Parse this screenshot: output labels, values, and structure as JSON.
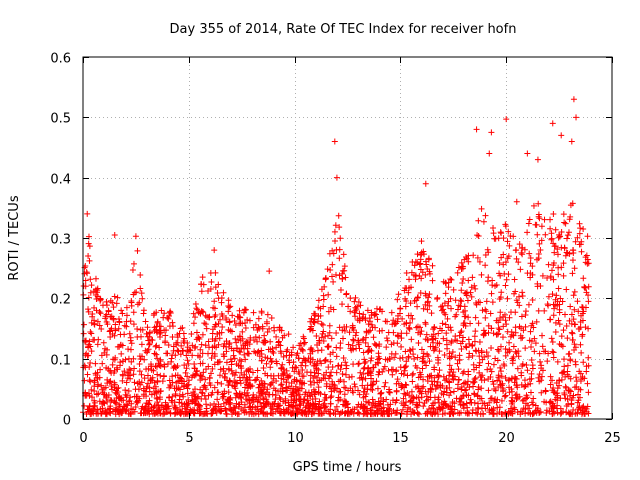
{
  "chart_data": {
    "type": "scatter",
    "title": "Day 355 of 2014, Rate Of TEC Index for receiver hofn",
    "xlabel": "GPS time / hours",
    "ylabel": "ROTI / TECUs",
    "xlim": [
      0,
      25
    ],
    "ylim": [
      0,
      0.6
    ],
    "x_ticks": [
      0,
      5,
      10,
      15,
      20,
      25
    ],
    "x_tick_labels": [
      "0",
      "5",
      "10",
      "15",
      "20",
      "25"
    ],
    "y_ticks": [
      0,
      0.1,
      0.2,
      0.3,
      0.4,
      0.5,
      0.6
    ],
    "y_tick_labels": [
      "0",
      "0.1",
      "0.2",
      "0.3",
      "0.4",
      "0.5",
      "0.6"
    ],
    "grid": true,
    "marker": "plus",
    "series": [
      {
        "name": "ROTI",
        "color": "#ff0000",
        "envelope_note": "approximate upper bound of the dense point cloud (hours, TECU); points fill from ~0.01 up to this",
        "envelope": [
          [
            0.0,
            0.22
          ],
          [
            0.2,
            0.33
          ],
          [
            0.5,
            0.25
          ],
          [
            1.0,
            0.19
          ],
          [
            1.5,
            0.21
          ],
          [
            2.0,
            0.18
          ],
          [
            2.5,
            0.3
          ],
          [
            3.0,
            0.17
          ],
          [
            3.5,
            0.18
          ],
          [
            4.0,
            0.19
          ],
          [
            4.5,
            0.16
          ],
          [
            5.0,
            0.14
          ],
          [
            5.5,
            0.24
          ],
          [
            6.0,
            0.28
          ],
          [
            6.5,
            0.22
          ],
          [
            7.0,
            0.2
          ],
          [
            7.5,
            0.18
          ],
          [
            8.0,
            0.19
          ],
          [
            8.5,
            0.18
          ],
          [
            9.0,
            0.17
          ],
          [
            9.5,
            0.16
          ],
          [
            10.0,
            0.12
          ],
          [
            10.5,
            0.14
          ],
          [
            11.0,
            0.19
          ],
          [
            11.5,
            0.24
          ],
          [
            12.0,
            0.37
          ],
          [
            12.5,
            0.24
          ],
          [
            13.0,
            0.2
          ],
          [
            13.5,
            0.18
          ],
          [
            14.0,
            0.19
          ],
          [
            14.5,
            0.17
          ],
          [
            15.0,
            0.22
          ],
          [
            15.5,
            0.26
          ],
          [
            16.0,
            0.31
          ],
          [
            16.5,
            0.27
          ],
          [
            17.0,
            0.23
          ],
          [
            17.5,
            0.24
          ],
          [
            18.0,
            0.27
          ],
          [
            18.5,
            0.34
          ],
          [
            19.0,
            0.36
          ],
          [
            19.5,
            0.31
          ],
          [
            20.0,
            0.33
          ],
          [
            20.5,
            0.29
          ],
          [
            21.0,
            0.33
          ],
          [
            21.5,
            0.37
          ],
          [
            22.0,
            0.36
          ],
          [
            22.5,
            0.32
          ],
          [
            23.0,
            0.38
          ],
          [
            23.5,
            0.33
          ],
          [
            23.9,
            0.31
          ]
        ],
        "outliers": [
          [
            0.2,
            0.34
          ],
          [
            1.5,
            0.305
          ],
          [
            2.5,
            0.303
          ],
          [
            6.2,
            0.28
          ],
          [
            8.8,
            0.245
          ],
          [
            11.9,
            0.46
          ],
          [
            12.0,
            0.4
          ],
          [
            16.2,
            0.39
          ],
          [
            18.6,
            0.48
          ],
          [
            19.2,
            0.44
          ],
          [
            19.3,
            0.475
          ],
          [
            20.0,
            0.497
          ],
          [
            20.5,
            0.36
          ],
          [
            21.0,
            0.44
          ],
          [
            21.5,
            0.43
          ],
          [
            22.2,
            0.49
          ],
          [
            22.6,
            0.47
          ],
          [
            23.2,
            0.53
          ],
          [
            23.3,
            0.5
          ],
          [
            23.1,
            0.46
          ]
        ]
      }
    ]
  }
}
